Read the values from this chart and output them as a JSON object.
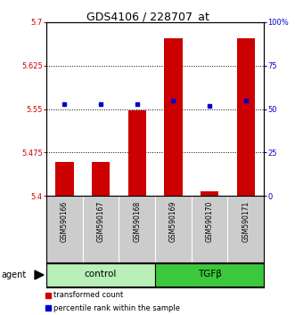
{
  "title": "GDS4106 / 228707_at",
  "samples": [
    "GSM590166",
    "GSM590167",
    "GSM590168",
    "GSM590169",
    "GSM590170",
    "GSM590171"
  ],
  "groups": [
    {
      "name": "control",
      "color": "#b8f0b8",
      "samples": [
        0,
        1,
        2
      ]
    },
    {
      "name": "TGFβ",
      "color": "#3cc83c",
      "samples": [
        3,
        4,
        5
      ]
    }
  ],
  "bar_values": [
    5.458,
    5.458,
    5.548,
    5.672,
    5.408,
    5.673
  ],
  "bar_bottom": 5.4,
  "percentile_values": [
    53,
    53,
    53,
    55,
    52,
    55
  ],
  "ylim_left": [
    5.4,
    5.7
  ],
  "ylim_right": [
    0,
    100
  ],
  "yticks_left": [
    5.4,
    5.475,
    5.55,
    5.625,
    5.7
  ],
  "ytick_labels_left": [
    "5.4",
    "5.475",
    "5.55",
    "5.625",
    "5.7"
  ],
  "yticks_right": [
    0,
    25,
    50,
    75,
    100
  ],
  "ytick_labels_right": [
    "0",
    "25",
    "50",
    "75",
    "100%"
  ],
  "bar_color": "#cc0000",
  "percentile_color": "#0000cc",
  "grid_ticks": [
    5.475,
    5.55,
    5.625
  ],
  "bar_width": 0.5,
  "left_label_color": "#cc0000",
  "right_label_color": "#0000cc",
  "agent_label": "agent",
  "legend_bar_label": "transformed count",
  "legend_pct_label": "percentile rank within the sample",
  "sample_bg_color": "#cccccc",
  "sample_divider_color": "#ffffff"
}
